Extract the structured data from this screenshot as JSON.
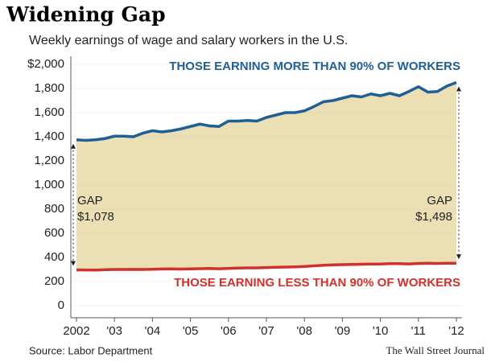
{
  "chart_data": {
    "type": "line",
    "title": "Widening Gap",
    "subtitle": "Weekly earnings of wage and salary workers in the U.S.",
    "source": "Source: Labor Department",
    "credit": "The Wall Street Journal",
    "categories": [
      "2002",
      null,
      null,
      null,
      "'03",
      null,
      null,
      null,
      "'04",
      null,
      null,
      null,
      "'05",
      null,
      null,
      null,
      "'06",
      null,
      null,
      null,
      "'07",
      null,
      null,
      null,
      "'08",
      null,
      null,
      null,
      "'09",
      null,
      null,
      null,
      "'10",
      null,
      null,
      null,
      "'11",
      null,
      null,
      null,
      "'12"
    ],
    "series": [
      {
        "name": "THOSE EARNING MORE THAN 90% OF WORKERS",
        "color": "#1f5f97",
        "values": [
          1375,
          1370,
          1375,
          1385,
          1405,
          1405,
          1400,
          1430,
          1450,
          1440,
          1450,
          1465,
          1485,
          1505,
          1490,
          1485,
          1530,
          1530,
          1535,
          1530,
          1560,
          1580,
          1600,
          1600,
          1615,
          1650,
          1690,
          1700,
          1720,
          1740,
          1730,
          1755,
          1740,
          1760,
          1740,
          1775,
          1815,
          1770,
          1775,
          1820,
          1850
        ]
      },
      {
        "name": "THOSE EARNING LESS THAN 90% OF WORKERS",
        "color": "#d0312d",
        "values": [
          297,
          296,
          295,
          298,
          300,
          300,
          301,
          300,
          302,
          304,
          305,
          303,
          305,
          307,
          308,
          306,
          309,
          312,
          313,
          313,
          316,
          318,
          320,
          322,
          325,
          330,
          335,
          338,
          340,
          342,
          343,
          345,
          345,
          348,
          348,
          346,
          350,
          352,
          350,
          352,
          352
        ]
      }
    ],
    "gap_start": {
      "label": "GAP",
      "value_label": "$1,078"
    },
    "gap_end": {
      "label": "GAP",
      "value_label": "$1,498"
    },
    "fill_color": "#ebdfb3",
    "ylim": [
      0,
      2000
    ],
    "yticks": [
      0,
      200,
      400,
      600,
      800,
      {
        "value": 1000,
        "label": "1,000"
      },
      {
        "value": 1200,
        "label": "1,200"
      },
      {
        "value": 1400,
        "label": "1,400"
      },
      {
        "value": 1600,
        "label": "1,600"
      },
      {
        "value": 1800,
        "label": "1,800"
      },
      {
        "value": 2000,
        "label": "$2,000"
      }
    ],
    "grid": true
  }
}
